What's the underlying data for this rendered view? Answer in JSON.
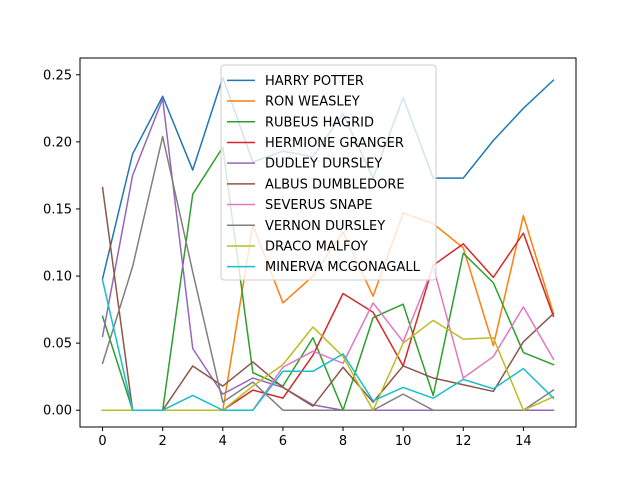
{
  "chart_data": {
    "type": "line",
    "title": "",
    "xlabel": "",
    "ylabel": "",
    "xlim": [
      -0.75,
      15.75
    ],
    "ylim": [
      -0.0125,
      0.2625
    ],
    "xticks": [
      0,
      2,
      4,
      6,
      8,
      10,
      12,
      14
    ],
    "yticks": [
      0.0,
      0.05,
      0.1,
      0.15,
      0.2,
      0.25
    ],
    "ytick_labels": [
      "0.00",
      "0.05",
      "0.10",
      "0.15",
      "0.20",
      "0.25"
    ],
    "grid": false,
    "legend_position": "top-center",
    "x": [
      0,
      1,
      2,
      3,
      4,
      5,
      6,
      7,
      8,
      9,
      10,
      11,
      12,
      13,
      14,
      15
    ],
    "series": [
      {
        "name": "HARRY POTTER",
        "color": "#1f77b4",
        "values": [
          0.098,
          0.191,
          0.234,
          0.179,
          0.248,
          0.185,
          0.193,
          0.189,
          0.221,
          0.173,
          0.233,
          0.173,
          0.173,
          0.201,
          0.225,
          0.246
        ]
      },
      {
        "name": "RON WEASLEY",
        "color": "#ff7f0e",
        "values": [
          0.0,
          0.0,
          0.0,
          0.0,
          0.0,
          0.138,
          0.08,
          0.1,
          0.133,
          0.085,
          0.147,
          0.139,
          0.121,
          0.048,
          0.145,
          0.072
        ]
      },
      {
        "name": "RUBEUS HAGRID",
        "color": "#2ca02c",
        "values": [
          0.07,
          0.0,
          0.0,
          0.161,
          0.196,
          0.028,
          0.018,
          0.054,
          0.0,
          0.069,
          0.079,
          0.011,
          0.117,
          0.095,
          0.043,
          0.034
        ]
      },
      {
        "name": "HERMIONE GRANGER",
        "color": "#d62728",
        "values": [
          0.0,
          0.0,
          0.0,
          0.0,
          0.0,
          0.015,
          0.009,
          0.041,
          0.087,
          0.073,
          0.033,
          0.108,
          0.124,
          0.099,
          0.132,
          0.07
        ]
      },
      {
        "name": "DUDLEY DURSLEY",
        "color": "#9467bd",
        "values": [
          0.055,
          0.175,
          0.232,
          0.046,
          0.012,
          0.024,
          0.017,
          0.004,
          0.0,
          0.0,
          0.0,
          0.0,
          0.0,
          0.0,
          0.0,
          0.0
        ]
      },
      {
        "name": "ALBUS DUMBLEDORE",
        "color": "#8c564b",
        "values": [
          0.166,
          0.0,
          0.0,
          0.033,
          0.018,
          0.036,
          0.017,
          0.003,
          0.032,
          0.006,
          0.033,
          0.024,
          0.019,
          0.014,
          0.051,
          0.072
        ]
      },
      {
        "name": "SEVERUS SNAPE",
        "color": "#e377c2",
        "values": [
          0.0,
          0.0,
          0.0,
          0.0,
          0.0,
          0.0,
          0.032,
          0.044,
          0.035,
          0.08,
          0.051,
          0.107,
          0.024,
          0.04,
          0.077,
          0.038
        ]
      },
      {
        "name": "VERNON DURSLEY",
        "color": "#7f7f7f",
        "values": [
          0.035,
          0.107,
          0.204,
          0.103,
          0.006,
          0.021,
          0.0,
          0.0,
          0.0,
          0.0,
          0.012,
          0.0,
          0.0,
          0.0,
          0.0,
          0.015
        ]
      },
      {
        "name": "DRACO MALFOY",
        "color": "#bcbd22",
        "values": [
          0.0,
          0.0,
          0.0,
          0.0,
          0.0,
          0.018,
          0.034,
          0.062,
          0.04,
          0.0,
          0.05,
          0.067,
          0.053,
          0.054,
          0.0,
          0.01
        ]
      },
      {
        "name": "MINERVA MCGONAGALL",
        "color": "#17becf",
        "values": [
          0.097,
          0.0,
          0.0,
          0.011,
          0.0,
          0.0,
          0.029,
          0.029,
          0.042,
          0.007,
          0.017,
          0.009,
          0.023,
          0.016,
          0.031,
          0.009
        ]
      }
    ]
  }
}
